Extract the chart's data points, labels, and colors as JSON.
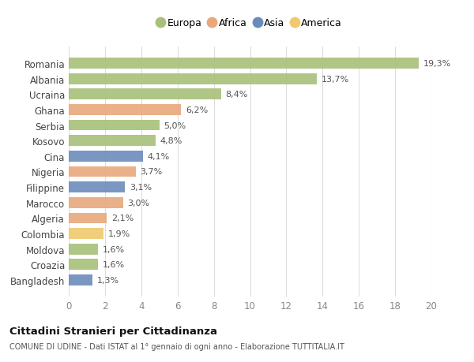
{
  "categories": [
    "Romania",
    "Albania",
    "Ucraina",
    "Ghana",
    "Serbia",
    "Kosovo",
    "Cina",
    "Nigeria",
    "Filippine",
    "Marocco",
    "Algeria",
    "Colombia",
    "Moldova",
    "Croazia",
    "Bangladesh"
  ],
  "values": [
    19.3,
    13.7,
    8.4,
    6.2,
    5.0,
    4.8,
    4.1,
    3.7,
    3.1,
    3.0,
    2.1,
    1.9,
    1.6,
    1.6,
    1.3
  ],
  "labels": [
    "19,3%",
    "13,7%",
    "8,4%",
    "6,2%",
    "5,0%",
    "4,8%",
    "4,1%",
    "3,7%",
    "3,1%",
    "3,0%",
    "2,1%",
    "1,9%",
    "1,6%",
    "1,6%",
    "1,3%"
  ],
  "continents": [
    "Europa",
    "Europa",
    "Europa",
    "Africa",
    "Europa",
    "Europa",
    "Asia",
    "Africa",
    "Asia",
    "Africa",
    "Africa",
    "America",
    "Europa",
    "Europa",
    "Asia"
  ],
  "colors": {
    "Europa": "#a8c07a",
    "Africa": "#e8a87c",
    "Asia": "#6b8cba",
    "America": "#f0c96e"
  },
  "legend_order": [
    "Europa",
    "Africa",
    "Asia",
    "America"
  ],
  "title": "Cittadini Stranieri per Cittadinanza",
  "subtitle": "COMUNE DI UDINE - Dati ISTAT al 1° gennaio di ogni anno - Elaborazione TUTTITALIA.IT",
  "xlim": [
    0,
    20
  ],
  "xticks": [
    0,
    2,
    4,
    6,
    8,
    10,
    12,
    14,
    16,
    18,
    20
  ],
  "background_color": "#ffffff",
  "grid_color": "#dddddd"
}
